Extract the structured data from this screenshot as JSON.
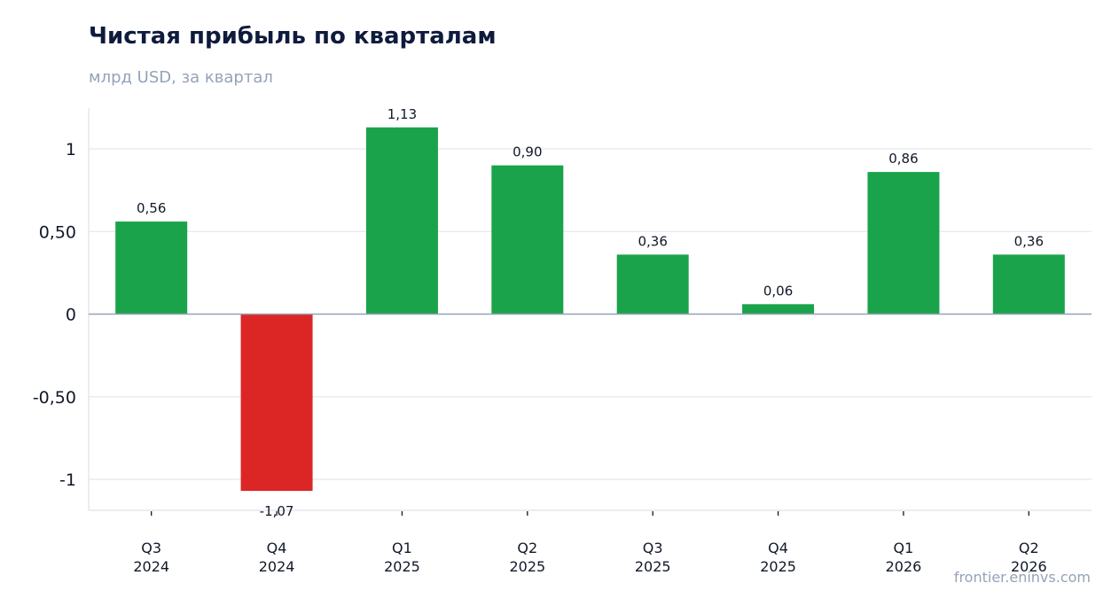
{
  "chart_data": {
    "type": "bar",
    "title": "Чистая прибыль по кварталам",
    "subtitle": "млрд USD, за квартал",
    "categories": [
      [
        "Q3",
        "2024"
      ],
      [
        "Q4",
        "2024"
      ],
      [
        "Q1",
        "2025"
      ],
      [
        "Q2",
        "2025"
      ],
      [
        "Q3",
        "2025"
      ],
      [
        "Q4",
        "2025"
      ],
      [
        "Q1",
        "2026"
      ],
      [
        "Q2",
        "2026"
      ]
    ],
    "values": [
      0.56,
      -1.07,
      1.13,
      0.9,
      0.36,
      0.06,
      0.86,
      0.36
    ],
    "data_labels": [
      "0,56",
      "-1,07",
      "1,13",
      "0,90",
      "0,36",
      "0,06",
      "0,86",
      "0,36"
    ],
    "yticks": [
      {
        "value": 1,
        "label": "1"
      },
      {
        "value": 0.5,
        "label": "0,50"
      },
      {
        "value": 0,
        "label": "0"
      },
      {
        "value": -0.5,
        "label": "-0,50"
      },
      {
        "value": -1,
        "label": "-1"
      }
    ],
    "ylim": [
      -1.18,
      1.25
    ],
    "grid": true,
    "colors": {
      "positive": "#1aa34a",
      "negative": "#dc2626",
      "grid": "#e5e7eb",
      "zero_line": "#94a3b8",
      "axis": "#e5e7eb"
    }
  },
  "footer": {
    "source": "frontier.eninvs.com"
  }
}
